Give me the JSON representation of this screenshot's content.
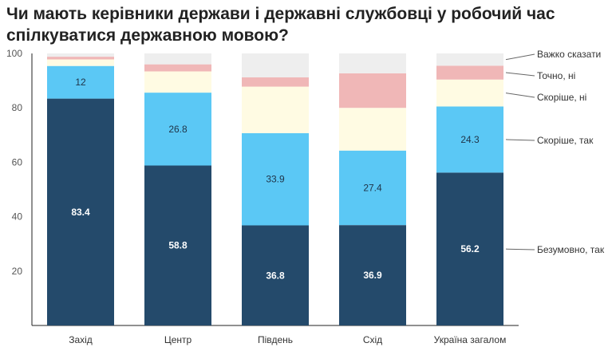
{
  "chart_data": {
    "type": "bar",
    "stacked": true,
    "title": "Чи мають керівники держави і державні службовці у робочий час спілкуватися державною мовою?",
    "xlabel": "",
    "ylabel": "",
    "ylim": [
      0,
      100
    ],
    "yticks": [
      20,
      40,
      60,
      80,
      100
    ],
    "grid": false,
    "legend_position": "right",
    "categories": [
      "Захід",
      "Центр",
      "Південь",
      "Схід",
      "Україна загалом"
    ],
    "series": [
      {
        "name": "Безумовно, так",
        "color": "#244a6b",
        "label_color": "#ffffff",
        "show_labels": true,
        "values": [
          83.4,
          58.8,
          36.8,
          36.9,
          56.2
        ]
      },
      {
        "name": "Скоріше, так",
        "color": "#5bc8f5",
        "label_color": "#1f3347",
        "show_labels": true,
        "values": [
          12,
          26.8,
          33.9,
          27.4,
          24.3
        ]
      },
      {
        "name": "Скоріше, ні",
        "color": "#fffbe3",
        "show_labels": false,
        "values": [
          2.4,
          7.8,
          17.1,
          15.7,
          9.9
        ]
      },
      {
        "name": "Точно, ні",
        "color": "#f0b7b7",
        "show_labels": false,
        "values": [
          1.0,
          2.6,
          3.4,
          12.7,
          5.1
        ]
      },
      {
        "name": "Важко сказати",
        "color": "#eeeeee",
        "show_labels": false,
        "values": [
          1.2,
          4.0,
          8.8,
          7.3,
          4.5
        ]
      }
    ]
  }
}
